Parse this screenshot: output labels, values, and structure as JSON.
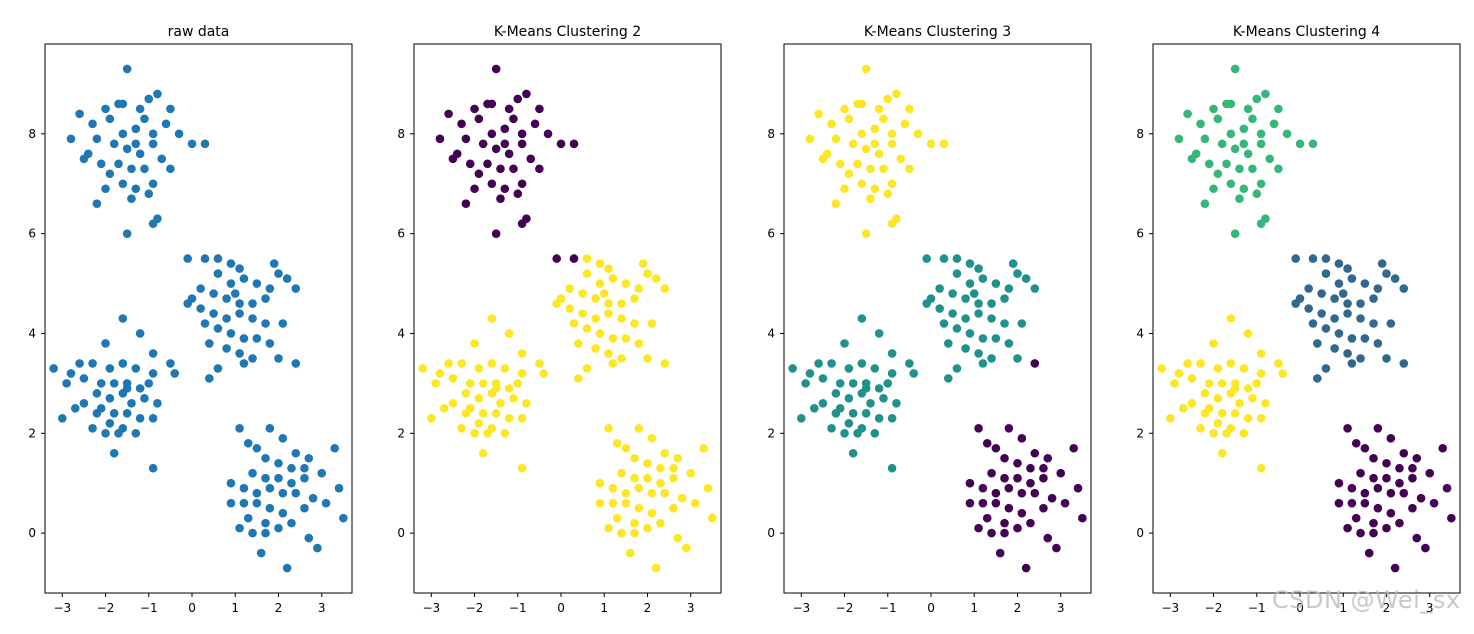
{
  "watermark": "CSDN @Wei_sx",
  "colors": {
    "raw": "#1f77b4",
    "viridis_k2": [
      "#440154",
      "#fde725"
    ],
    "viridis_k3": [
      "#440154",
      "#21918c",
      "#fde725"
    ],
    "viridis_k4": [
      "#440154",
      "#31688e",
      "#35b779",
      "#fde725"
    ],
    "axis": "#000000",
    "text": "#000000"
  },
  "chart_data": [
    {
      "type": "scatter",
      "title": "raw data",
      "xlabel": "",
      "ylabel": "",
      "xlim": [
        -3.4,
        3.7
      ],
      "ylim": [
        -1.2,
        9.8
      ],
      "xticks": [
        -3,
        -2,
        -1,
        0,
        1,
        2,
        3
      ],
      "yticks": [
        0,
        2,
        4,
        6,
        8
      ],
      "grid": false,
      "color_map": "single",
      "points": [
        [
          -1.5,
          9.3
        ],
        [
          -1.7,
          8.6
        ],
        [
          -1.2,
          8.5
        ],
        [
          -2.0,
          8.5
        ],
        [
          -1.0,
          8.7
        ],
        [
          -0.8,
          8.8
        ],
        [
          -2.3,
          8.2
        ],
        [
          -1.9,
          8.3
        ],
        [
          -1.6,
          8.0
        ],
        [
          -1.3,
          8.1
        ],
        [
          -1.1,
          8.3
        ],
        [
          -0.9,
          8.0
        ],
        [
          -2.6,
          8.4
        ],
        [
          -2.2,
          7.9
        ],
        [
          -1.8,
          7.8
        ],
        [
          -1.5,
          7.7
        ],
        [
          -1.2,
          7.6
        ],
        [
          -0.9,
          7.8
        ],
        [
          -0.6,
          8.2
        ],
        [
          -0.3,
          8.0
        ],
        [
          0.0,
          7.8
        ],
        [
          0.3,
          7.8
        ],
        [
          -2.5,
          7.5
        ],
        [
          -2.1,
          7.4
        ],
        [
          -1.7,
          7.4
        ],
        [
          -1.4,
          7.3
        ],
        [
          -1.1,
          7.3
        ],
        [
          -0.7,
          7.5
        ],
        [
          -0.5,
          7.3
        ],
        [
          -2.8,
          7.9
        ],
        [
          -1.9,
          7.2
        ],
        [
          -1.6,
          7.0
        ],
        [
          -1.3,
          6.9
        ],
        [
          -0.9,
          7.0
        ],
        [
          -2.0,
          6.9
        ],
        [
          -1.0,
          6.8
        ],
        [
          -1.4,
          6.7
        ],
        [
          -2.2,
          6.6
        ],
        [
          -0.8,
          6.3
        ],
        [
          -0.9,
          6.2
        ],
        [
          -1.5,
          6.0
        ],
        [
          -0.5,
          8.5
        ],
        [
          -1.6,
          8.6
        ],
        [
          -2.4,
          7.6
        ],
        [
          -1.3,
          7.8
        ],
        [
          -0.1,
          5.5
        ],
        [
          0.3,
          5.5
        ],
        [
          0.6,
          5.5
        ],
        [
          0.9,
          5.4
        ],
        [
          1.1,
          5.3
        ],
        [
          0.6,
          5.2
        ],
        [
          0.9,
          5.0
        ],
        [
          1.2,
          5.1
        ],
        [
          1.5,
          5.0
        ],
        [
          1.9,
          5.4
        ],
        [
          2.0,
          5.2
        ],
        [
          2.2,
          5.1
        ],
        [
          1.8,
          4.9
        ],
        [
          2.4,
          4.9
        ],
        [
          0.2,
          4.9
        ],
        [
          0.5,
          4.8
        ],
        [
          0.8,
          4.7
        ],
        [
          1.1,
          4.6
        ],
        [
          1.4,
          4.6
        ],
        [
          1.7,
          4.7
        ],
        [
          -0.1,
          4.6
        ],
        [
          0.2,
          4.5
        ],
        [
          0.5,
          4.4
        ],
        [
          0.8,
          4.3
        ],
        [
          1.1,
          4.4
        ],
        [
          1.4,
          4.3
        ],
        [
          1.7,
          4.2
        ],
        [
          2.1,
          4.2
        ],
        [
          0.3,
          4.2
        ],
        [
          0.6,
          4.1
        ],
        [
          0.9,
          4.0
        ],
        [
          1.2,
          3.9
        ],
        [
          1.5,
          3.9
        ],
        [
          0.4,
          3.8
        ],
        [
          0.8,
          3.7
        ],
        [
          1.1,
          3.6
        ],
        [
          1.4,
          3.5
        ],
        [
          2.0,
          3.5
        ],
        [
          2.4,
          3.4
        ],
        [
          0.6,
          3.3
        ],
        [
          0.4,
          3.1
        ],
        [
          1.2,
          3.4
        ],
        [
          1.8,
          3.8
        ],
        [
          0.0,
          4.7
        ],
        [
          1.0,
          4.8
        ],
        [
          -2.0,
          3.8
        ],
        [
          -1.6,
          4.3
        ],
        [
          -1.2,
          4.0
        ],
        [
          -0.9,
          3.6
        ],
        [
          -0.5,
          3.4
        ],
        [
          -0.4,
          3.2
        ],
        [
          -2.6,
          3.4
        ],
        [
          -2.3,
          3.4
        ],
        [
          -1.9,
          3.3
        ],
        [
          -1.6,
          3.4
        ],
        [
          -1.3,
          3.3
        ],
        [
          -0.9,
          3.2
        ],
        [
          -2.8,
          3.2
        ],
        [
          -2.5,
          3.1
        ],
        [
          -2.1,
          3.0
        ],
        [
          -1.8,
          3.0
        ],
        [
          -1.5,
          3.0
        ],
        [
          -1.2,
          2.9
        ],
        [
          -1.0,
          3.0
        ],
        [
          -3.2,
          3.3
        ],
        [
          -2.9,
          3.0
        ],
        [
          -2.2,
          2.8
        ],
        [
          -1.9,
          2.7
        ],
        [
          -1.6,
          2.8
        ],
        [
          -1.4,
          2.6
        ],
        [
          -1.1,
          2.7
        ],
        [
          -0.8,
          2.6
        ],
        [
          -2.5,
          2.6
        ],
        [
          -2.1,
          2.5
        ],
        [
          -1.8,
          2.4
        ],
        [
          -1.5,
          2.4
        ],
        [
          -1.2,
          2.3
        ],
        [
          -0.9,
          2.3
        ],
        [
          -2.7,
          2.5
        ],
        [
          -1.9,
          2.2
        ],
        [
          -1.6,
          2.1
        ],
        [
          -2.3,
          2.1
        ],
        [
          -2.0,
          2.0
        ],
        [
          -1.7,
          2.0
        ],
        [
          -1.3,
          2.0
        ],
        [
          -3.0,
          2.3
        ],
        [
          -1.8,
          1.6
        ],
        [
          -0.9,
          1.3
        ],
        [
          -1.5,
          2.9
        ],
        [
          -2.2,
          2.4
        ],
        [
          1.1,
          2.1
        ],
        [
          1.3,
          1.8
        ],
        [
          1.8,
          2.1
        ],
        [
          2.1,
          1.9
        ],
        [
          1.5,
          1.7
        ],
        [
          2.4,
          1.6
        ],
        [
          2.7,
          1.5
        ],
        [
          3.3,
          1.7
        ],
        [
          1.7,
          1.5
        ],
        [
          2.0,
          1.4
        ],
        [
          2.3,
          1.3
        ],
        [
          2.6,
          1.3
        ],
        [
          1.4,
          1.2
        ],
        [
          1.7,
          1.1
        ],
        [
          2.0,
          1.1
        ],
        [
          2.3,
          1.0
        ],
        [
          2.6,
          1.1
        ],
        [
          3.0,
          1.2
        ],
        [
          0.9,
          1.0
        ],
        [
          1.2,
          0.9
        ],
        [
          1.5,
          0.8
        ],
        [
          1.8,
          0.9
        ],
        [
          2.1,
          0.8
        ],
        [
          2.4,
          0.8
        ],
        [
          3.4,
          0.9
        ],
        [
          2.8,
          0.7
        ],
        [
          0.9,
          0.6
        ],
        [
          1.2,
          0.6
        ],
        [
          1.5,
          0.6
        ],
        [
          1.8,
          0.5
        ],
        [
          2.1,
          0.4
        ],
        [
          2.6,
          0.5
        ],
        [
          3.1,
          0.6
        ],
        [
          1.3,
          0.3
        ],
        [
          1.7,
          0.2
        ],
        [
          2.0,
          0.1
        ],
        [
          2.3,
          0.2
        ],
        [
          1.4,
          0.0
        ],
        [
          1.7,
          0.0
        ],
        [
          1.1,
          0.1
        ],
        [
          2.7,
          -0.1
        ],
        [
          3.5,
          0.3
        ],
        [
          1.6,
          -0.4
        ],
        [
          2.9,
          -0.3
        ],
        [
          2.2,
          -0.7
        ]
      ]
    },
    {
      "type": "scatter",
      "title": "K-Means Clustering 2",
      "xlabel": "",
      "ylabel": "",
      "xlim": [
        -3.4,
        3.7
      ],
      "ylim": [
        -1.2,
        9.8
      ],
      "xticks": [
        -3,
        -2,
        -1,
        0,
        1,
        2,
        3
      ],
      "yticks": [
        0,
        2,
        4,
        6,
        8
      ],
      "grid": false,
      "color_map": "viridis_k2",
      "cluster_rule": "k2"
    },
    {
      "type": "scatter",
      "title": "K-Means Clustering 3",
      "xlabel": "",
      "ylabel": "",
      "xlim": [
        -3.4,
        3.7
      ],
      "ylim": [
        -1.2,
        9.8
      ],
      "xticks": [
        -3,
        -2,
        -1,
        0,
        1,
        2,
        3
      ],
      "yticks": [
        0,
        2,
        4,
        6,
        8
      ],
      "grid": false,
      "color_map": "viridis_k3",
      "cluster_rule": "k3"
    },
    {
      "type": "scatter",
      "title": "K-Means Clustering 4",
      "xlabel": "",
      "ylabel": "",
      "xlim": [
        -3.4,
        3.7
      ],
      "ylim": [
        -1.2,
        9.8
      ],
      "xticks": [
        -3,
        -2,
        -1,
        0,
        1,
        2,
        3
      ],
      "yticks": [
        0,
        2,
        4,
        6,
        8
      ],
      "grid": false,
      "color_map": "viridis_k4",
      "cluster_rule": "k4"
    }
  ]
}
